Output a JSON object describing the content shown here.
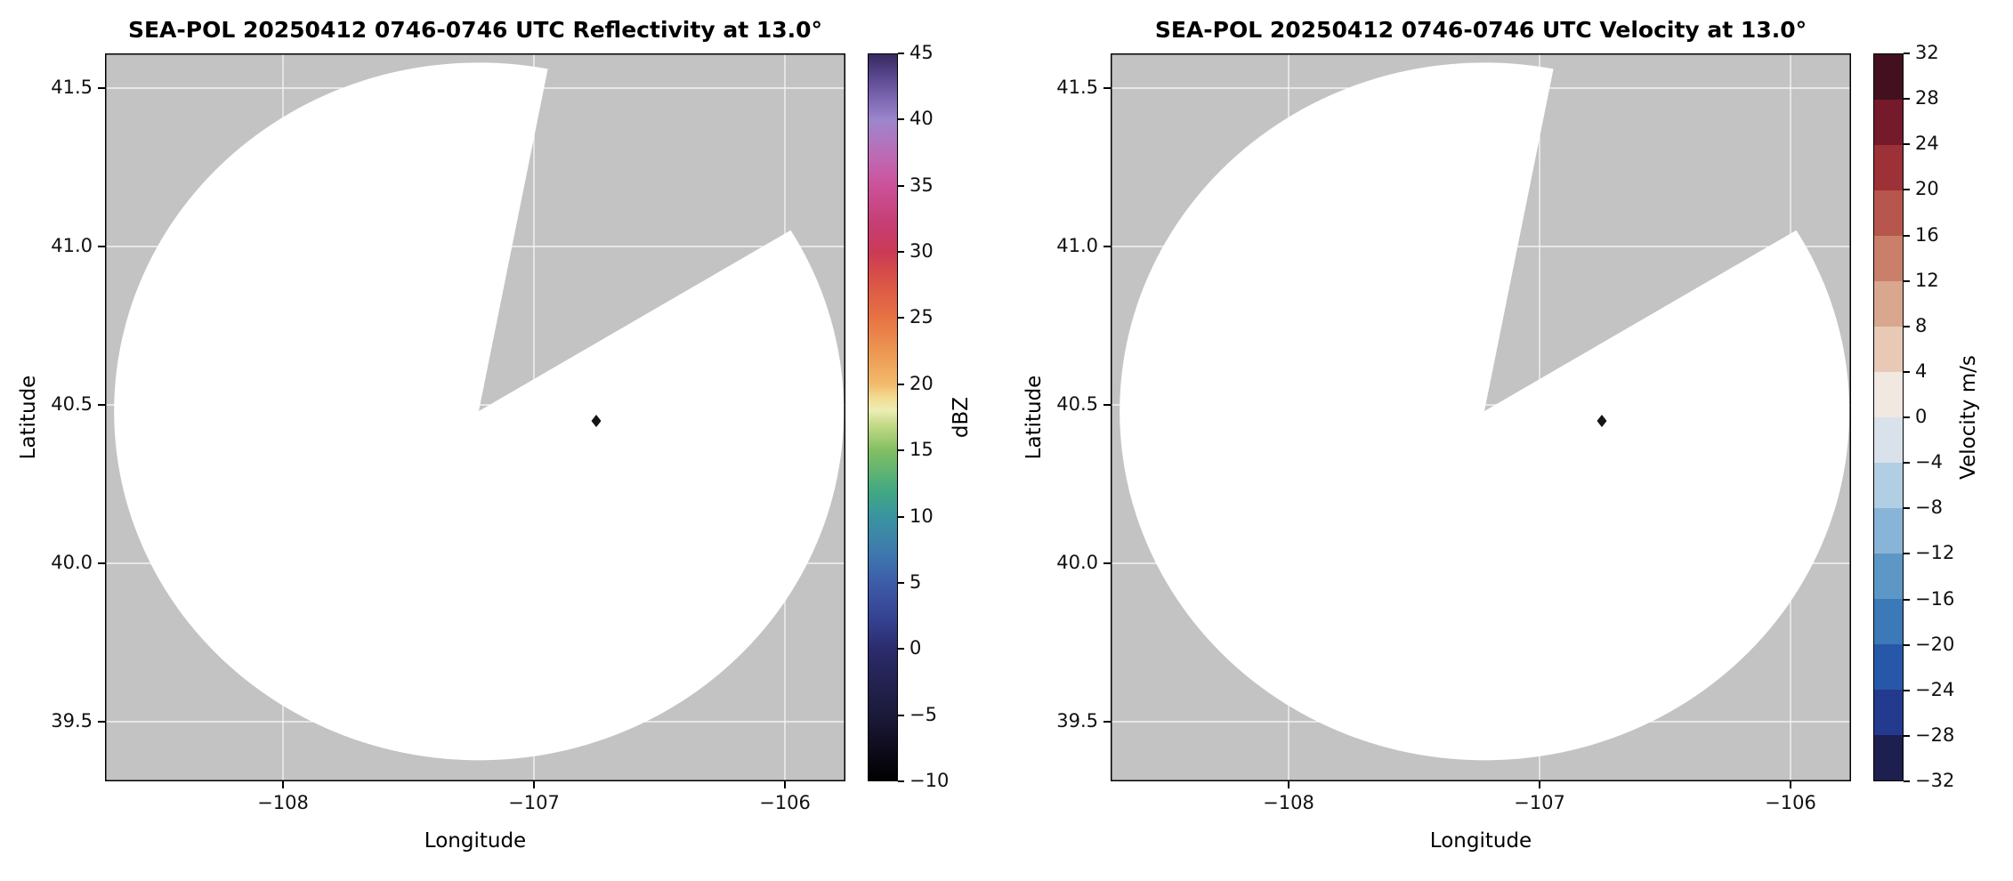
{
  "plot": {
    "background_color": "#c3c3c3",
    "scan_fill": "#ffffff",
    "grid_color": "#ffffff",
    "echo_point": {
      "lon": -106.75,
      "lat": 40.45,
      "color": "#151515"
    }
  },
  "panels": [
    {
      "title": "SEA-POL 20250412 0746-0746 UTC Reflectivity at 13.0°",
      "xlabel": "Longitude",
      "ylabel": "Latitude",
      "xticks": [
        {
          "v": -108,
          "label": "−108"
        },
        {
          "v": -107,
          "label": "−107"
        },
        {
          "v": -106,
          "label": "−106"
        }
      ],
      "yticks": [
        {
          "v": 41.5,
          "label": "41.5"
        },
        {
          "v": 41.0,
          "label": "41.0"
        },
        {
          "v": 40.5,
          "label": "40.5"
        },
        {
          "v": 40.0,
          "label": "40.0"
        },
        {
          "v": 39.5,
          "label": "39.5"
        }
      ],
      "colorbar": {
        "label": "dBZ",
        "min": -10,
        "max": 45,
        "ticks": [
          {
            "v": 45,
            "label": "45"
          },
          {
            "v": 40,
            "label": "40"
          },
          {
            "v": 35,
            "label": "35"
          },
          {
            "v": 30,
            "label": "30"
          },
          {
            "v": 25,
            "label": "25"
          },
          {
            "v": 20,
            "label": "20"
          },
          {
            "v": 15,
            "label": "15"
          },
          {
            "v": 10,
            "label": "10"
          },
          {
            "v": 5,
            "label": "5"
          },
          {
            "v": 0,
            "label": "0"
          },
          {
            "v": -5,
            "label": "−5"
          },
          {
            "v": -10,
            "label": "−10"
          }
        ],
        "gradient_stops": [
          {
            "v": -10,
            "color": "#000000"
          },
          {
            "v": -7,
            "color": "#120f23"
          },
          {
            "v": -5,
            "color": "#1b1a3a"
          },
          {
            "v": -2,
            "color": "#252457"
          },
          {
            "v": 0,
            "color": "#2b2c6d"
          },
          {
            "v": 2,
            "color": "#34408f"
          },
          {
            "v": 5,
            "color": "#3d5ca9"
          },
          {
            "v": 7,
            "color": "#3e76ae"
          },
          {
            "v": 10,
            "color": "#3a94a0"
          },
          {
            "v": 12,
            "color": "#42a981"
          },
          {
            "v": 15,
            "color": "#82bf62"
          },
          {
            "v": 17,
            "color": "#c6db88"
          },
          {
            "v": 18,
            "color": "#ecedb4"
          },
          {
            "v": 19,
            "color": "#f3dc92"
          },
          {
            "v": 20,
            "color": "#f2bb6c"
          },
          {
            "v": 22,
            "color": "#ee9e56"
          },
          {
            "v": 25,
            "color": "#e77344"
          },
          {
            "v": 28,
            "color": "#d95247"
          },
          {
            "v": 30,
            "color": "#cb3a55"
          },
          {
            "v": 32,
            "color": "#c63d71"
          },
          {
            "v": 35,
            "color": "#cb5199"
          },
          {
            "v": 37,
            "color": "#c167b2"
          },
          {
            "v": 40,
            "color": "#9c86cc"
          },
          {
            "v": 42,
            "color": "#7560ac"
          },
          {
            "v": 44,
            "color": "#4b3a7c"
          },
          {
            "v": 45,
            "color": "#372a60"
          }
        ]
      }
    },
    {
      "title": "SEA-POL 20250412 0746-0746 UTC Velocity at 13.0°",
      "xlabel": "Longitude",
      "ylabel": "Latitude",
      "xticks": [
        {
          "v": -108,
          "label": "−108"
        },
        {
          "v": -107,
          "label": "−107"
        },
        {
          "v": -106,
          "label": "−106"
        }
      ],
      "yticks": [
        {
          "v": 41.5,
          "label": "41.5"
        },
        {
          "v": 41.0,
          "label": "41.0"
        },
        {
          "v": 40.5,
          "label": "40.5"
        },
        {
          "v": 40.0,
          "label": "40.0"
        },
        {
          "v": 39.5,
          "label": "39.5"
        }
      ],
      "colorbar": {
        "label": "Velocity m/s",
        "min": -32,
        "max": 32,
        "ticks": [
          {
            "v": 32,
            "label": "32"
          },
          {
            "v": 28,
            "label": "28"
          },
          {
            "v": 24,
            "label": "24"
          },
          {
            "v": 20,
            "label": "20"
          },
          {
            "v": 16,
            "label": "16"
          },
          {
            "v": 12,
            "label": "12"
          },
          {
            "v": 8,
            "label": "8"
          },
          {
            "v": 4,
            "label": "4"
          },
          {
            "v": 0,
            "label": "0"
          },
          {
            "v": -4,
            "label": "−4"
          },
          {
            "v": -8,
            "label": "−8"
          },
          {
            "v": -12,
            "label": "−12"
          },
          {
            "v": -16,
            "label": "−16"
          },
          {
            "v": -20,
            "label": "−20"
          },
          {
            "v": -24,
            "label": "−24"
          },
          {
            "v": -28,
            "label": "−28"
          },
          {
            "v": -32,
            "label": "−32"
          }
        ],
        "block_colors": [
          "#1d1f4e",
          "#233a8f",
          "#2757a8",
          "#3b79b7",
          "#5d97c6",
          "#88b4d7",
          "#b2cee3",
          "#d9e2ea",
          "#f1e8e2",
          "#e7c9b6",
          "#d9a68e",
          "#c97f69",
          "#b6564c",
          "#9c3138",
          "#741a2b",
          "#43101f"
        ]
      }
    }
  ],
  "chart_data": [
    {
      "type": "heatmap",
      "title": "SEA-POL 20250412 0746-0746 UTC Reflectivity at 13.0°",
      "xlabel": "Longitude",
      "ylabel": "Latitude",
      "xlim": [
        -108.71,
        -105.76
      ],
      "ylim": [
        39.31,
        41.61
      ],
      "xticks": [
        -108,
        -107,
        -106
      ],
      "yticks": [
        39.5,
        40.0,
        40.5,
        41.0,
        41.5
      ],
      "grid": true,
      "colorbar": {
        "label": "dBZ",
        "range": [
          -10,
          45
        ],
        "tick_step": 5
      },
      "radar_coverage": {
        "center": [
          -107.22,
          40.48
        ],
        "radius_deg_lon": 1.45,
        "radius_deg_lat": 1.1,
        "missing_sector_azimuth_deg": [
          11,
          60
        ],
        "coverage_fill": "white (no echo)",
        "outside_fill": "gray (no data)"
      },
      "echoes": [
        {
          "lon": -106.75,
          "lat": 40.45
        }
      ]
    },
    {
      "type": "heatmap",
      "title": "SEA-POL 20250412 0746-0746 UTC Velocity at 13.0°",
      "xlabel": "Longitude",
      "ylabel": "Latitude",
      "xlim": [
        -108.71,
        -105.76
      ],
      "ylim": [
        39.31,
        41.61
      ],
      "xticks": [
        -108,
        -107,
        -106
      ],
      "yticks": [
        39.5,
        40.0,
        40.5,
        41.0,
        41.5
      ],
      "grid": true,
      "colorbar": {
        "label": "Velocity m/s",
        "range": [
          -32,
          32
        ],
        "tick_step": 4
      },
      "radar_coverage": {
        "center": [
          -107.22,
          40.48
        ],
        "radius_deg_lon": 1.45,
        "radius_deg_lat": 1.1,
        "missing_sector_azimuth_deg": [
          11,
          60
        ],
        "coverage_fill": "white (no echo)",
        "outside_fill": "gray (no data)"
      },
      "echoes": [
        {
          "lon": -106.75,
          "lat": 40.45
        }
      ]
    }
  ]
}
